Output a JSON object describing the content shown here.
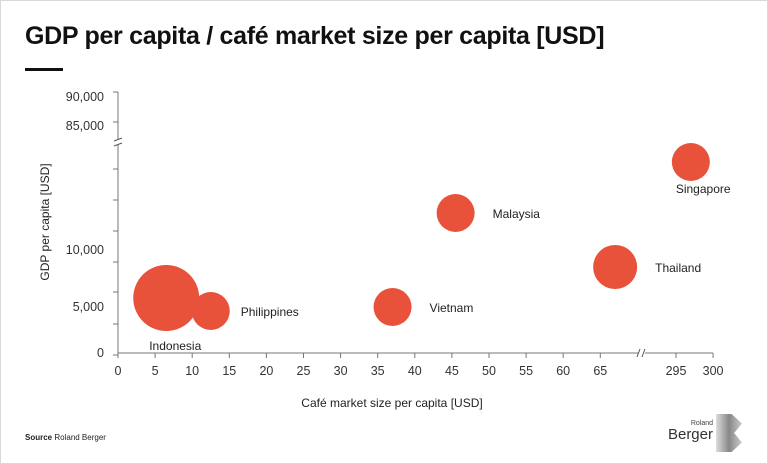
{
  "title": "GDP per capita / café market size per capita [USD]",
  "source_label": "Source",
  "source_text": "Roland Berger",
  "logo": {
    "small": "Roland",
    "large": "Berger"
  },
  "accent_color": "#e8513a",
  "chart_data": {
    "type": "scatter",
    "subtype": "bubble",
    "title": "GDP per capita / café market size per capita [USD]",
    "xlabel": "Café market size per capita [USD]",
    "ylabel": "GDP per capita [USD]",
    "x_ticks": [
      "0",
      "5",
      "10",
      "15",
      "20",
      "25",
      "30",
      "35",
      "40",
      "45",
      "50",
      "55",
      "60",
      "65",
      "295",
      "300"
    ],
    "y_ticks": [
      "0",
      "5,000",
      "10,000",
      "85,000",
      "90,000"
    ],
    "x_break": [
      70,
      290
    ],
    "y_break": [
      15000,
      80000
    ],
    "points": [
      {
        "name": "Indonesia",
        "x": 6.5,
        "y": 5200,
        "size": 33
      },
      {
        "name": "Philippines",
        "x": 12.5,
        "y": 4000,
        "size": 19
      },
      {
        "name": "Vietnam",
        "x": 37,
        "y": 4400,
        "size": 19
      },
      {
        "name": "Malaysia",
        "x": 45.5,
        "y": 13500,
        "size": 19
      },
      {
        "name": "Thailand",
        "x": 67,
        "y": 8300,
        "size": 22
      },
      {
        "name": "Singapore",
        "x": 297,
        "y": 60000,
        "size": 19
      }
    ]
  }
}
